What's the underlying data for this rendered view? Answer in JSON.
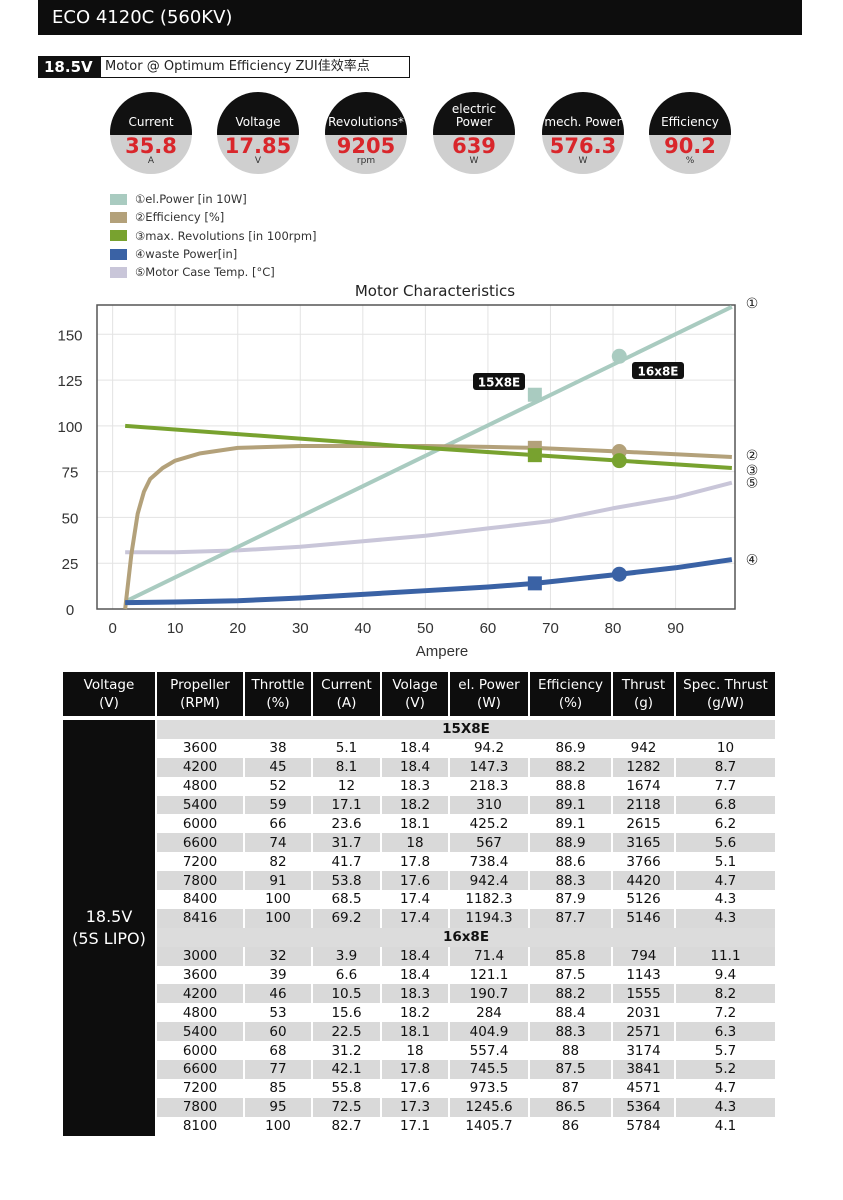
{
  "header": {
    "title": "ECO 4120C (560KV)"
  },
  "subtitle": {
    "voltage": "18.5V",
    "text": "Motor @ Optimum Efficiency ZUI佳效率点"
  },
  "gauges": [
    {
      "label": "Current",
      "value": "35.8",
      "unit": "A"
    },
    {
      "label": "Voltage",
      "value": "17.85",
      "unit": "V"
    },
    {
      "label": "Revolutions*",
      "value": "9205",
      "unit": "rpm"
    },
    {
      "label": "electric Power",
      "value": "639",
      "unit": "W"
    },
    {
      "label": "mech. Power",
      "value": "576.3",
      "unit": "W"
    },
    {
      "label": "Efficiency",
      "value": "90.2",
      "unit": "%"
    }
  ],
  "chart_data": {
    "type": "line",
    "title": "Motor Characteristics",
    "xlabel": "Ampere",
    "ylabel": "",
    "xlim": [
      -2.5,
      99.5
    ],
    "ylim": [
      0,
      166
    ],
    "xticks": [
      0,
      10,
      20,
      30,
      40,
      50,
      60,
      70,
      80,
      90
    ],
    "yticks": [
      0,
      25,
      50,
      75,
      100,
      125,
      150
    ],
    "grid": true,
    "legend": "top-left",
    "series": [
      {
        "name": "①el.Power [in 10W]",
        "marker": "①",
        "color": "#a9cbc0",
        "x": [
          2,
          99
        ],
        "y": [
          4,
          165
        ]
      },
      {
        "name": "②Efficiency [%]",
        "marker": "②",
        "color": "#b3a17a",
        "x": [
          2,
          3,
          4,
          5,
          6,
          8,
          10,
          14,
          20,
          30,
          40,
          50,
          60,
          67.5,
          81,
          99
        ],
        "y": [
          0,
          30,
          52,
          64,
          71,
          77,
          81,
          85,
          88,
          89,
          89,
          89,
          88.5,
          88,
          86,
          83
        ]
      },
      {
        "name": "③max. Revolutions [in 100rpm]",
        "marker": "③",
        "color": "#78a22f",
        "x": [
          2,
          50,
          67.5,
          81,
          99
        ],
        "y": [
          100,
          88,
          84,
          81,
          77
        ]
      },
      {
        "name": "④waste Power[in]",
        "marker": "④",
        "color": "#3a62a5",
        "x": [
          2,
          10,
          20,
          30,
          40,
          50,
          60,
          67.5,
          81,
          90,
          99
        ],
        "y": [
          3.5,
          3.8,
          4.5,
          6,
          8,
          10,
          12,
          14,
          19,
          22.5,
          27
        ]
      },
      {
        "name": "⑤Motor Case Temp. [°C]",
        "marker": "⑤",
        "color": "#c9c6d9",
        "x": [
          2,
          10,
          20,
          30,
          40,
          50,
          60,
          70,
          80,
          90,
          99
        ],
        "y": [
          31,
          31,
          32,
          34,
          37,
          40,
          44,
          48,
          55,
          61,
          69
        ]
      }
    ],
    "annotations": [
      {
        "label": "15X8E",
        "x": 67.5,
        "shape": "square",
        "values": {
          "el_power": 117,
          "efficiency": 88,
          "revolutions": 84,
          "waste": 14
        }
      },
      {
        "label": "16x8E",
        "x": 81,
        "shape": "circle",
        "values": {
          "el_power": 138,
          "efficiency": 86,
          "revolutions": 81,
          "waste": 19
        }
      }
    ]
  },
  "table": {
    "headers": [
      [
        "Voltage",
        "(V)"
      ],
      [
        "Propeller",
        "(RPM)"
      ],
      [
        "Throttle",
        "(%)"
      ],
      [
        "Current",
        "(A)"
      ],
      [
        "Volage",
        "(V)"
      ],
      [
        "el. Power",
        "(W)"
      ],
      [
        "Efficiency",
        "(%)"
      ],
      [
        "Thrust",
        "(g)"
      ],
      [
        "Spec. Thrust",
        "(g/W)"
      ]
    ],
    "voltage_line1": "18.5V",
    "voltage_line2": "(5S LIPO)",
    "groups": [
      {
        "name": "15X8E",
        "rows": [
          [
            "3600",
            "38",
            "5.1",
            "18.4",
            "94.2",
            "86.9",
            "942",
            "10"
          ],
          [
            "4200",
            "45",
            "8.1",
            "18.4",
            "147.3",
            "88.2",
            "1282",
            "8.7"
          ],
          [
            "4800",
            "52",
            "12",
            "18.3",
            "218.3",
            "88.8",
            "1674",
            "7.7"
          ],
          [
            "5400",
            "59",
            "17.1",
            "18.2",
            "310",
            "89.1",
            "2118",
            "6.8"
          ],
          [
            "6000",
            "66",
            "23.6",
            "18.1",
            "425.2",
            "89.1",
            "2615",
            "6.2"
          ],
          [
            "6600",
            "74",
            "31.7",
            "18",
            "567",
            "88.9",
            "3165",
            "5.6"
          ],
          [
            "7200",
            "82",
            "41.7",
            "17.8",
            "738.4",
            "88.6",
            "3766",
            "5.1"
          ],
          [
            "7800",
            "91",
            "53.8",
            "17.6",
            "942.4",
            "88.3",
            "4420",
            "4.7"
          ],
          [
            "8400",
            "100",
            "68.5",
            "17.4",
            "1182.3",
            "87.9",
            "5126",
            "4.3"
          ],
          [
            "8416",
            "100",
            "69.2",
            "17.4",
            "1194.3",
            "87.7",
            "5146",
            "4.3"
          ]
        ]
      },
      {
        "name": "16x8E",
        "rows": [
          [
            "3000",
            "32",
            "3.9",
            "18.4",
            "71.4",
            "85.8",
            "794",
            "11.1"
          ],
          [
            "3600",
            "39",
            "6.6",
            "18.4",
            "121.1",
            "87.5",
            "1143",
            "9.4"
          ],
          [
            "4200",
            "46",
            "10.5",
            "18.3",
            "190.7",
            "88.2",
            "1555",
            "8.2"
          ],
          [
            "4800",
            "53",
            "15.6",
            "18.2",
            "284",
            "88.4",
            "2031",
            "7.2"
          ],
          [
            "5400",
            "60",
            "22.5",
            "18.1",
            "404.9",
            "88.3",
            "2571",
            "6.3"
          ],
          [
            "6000",
            "68",
            "31.2",
            "18",
            "557.4",
            "88",
            "3174",
            "5.7"
          ],
          [
            "6600",
            "77",
            "42.1",
            "17.8",
            "745.5",
            "87.5",
            "3841",
            "5.2"
          ],
          [
            "7200",
            "85",
            "55.8",
            "17.6",
            "973.5",
            "87",
            "4571",
            "4.7"
          ],
          [
            "7800",
            "95",
            "72.5",
            "17.3",
            "1245.6",
            "86.5",
            "5364",
            "4.3"
          ],
          [
            "8100",
            "100",
            "82.7",
            "17.1",
            "1405.7",
            "86",
            "5784",
            "4.1"
          ]
        ]
      }
    ]
  }
}
